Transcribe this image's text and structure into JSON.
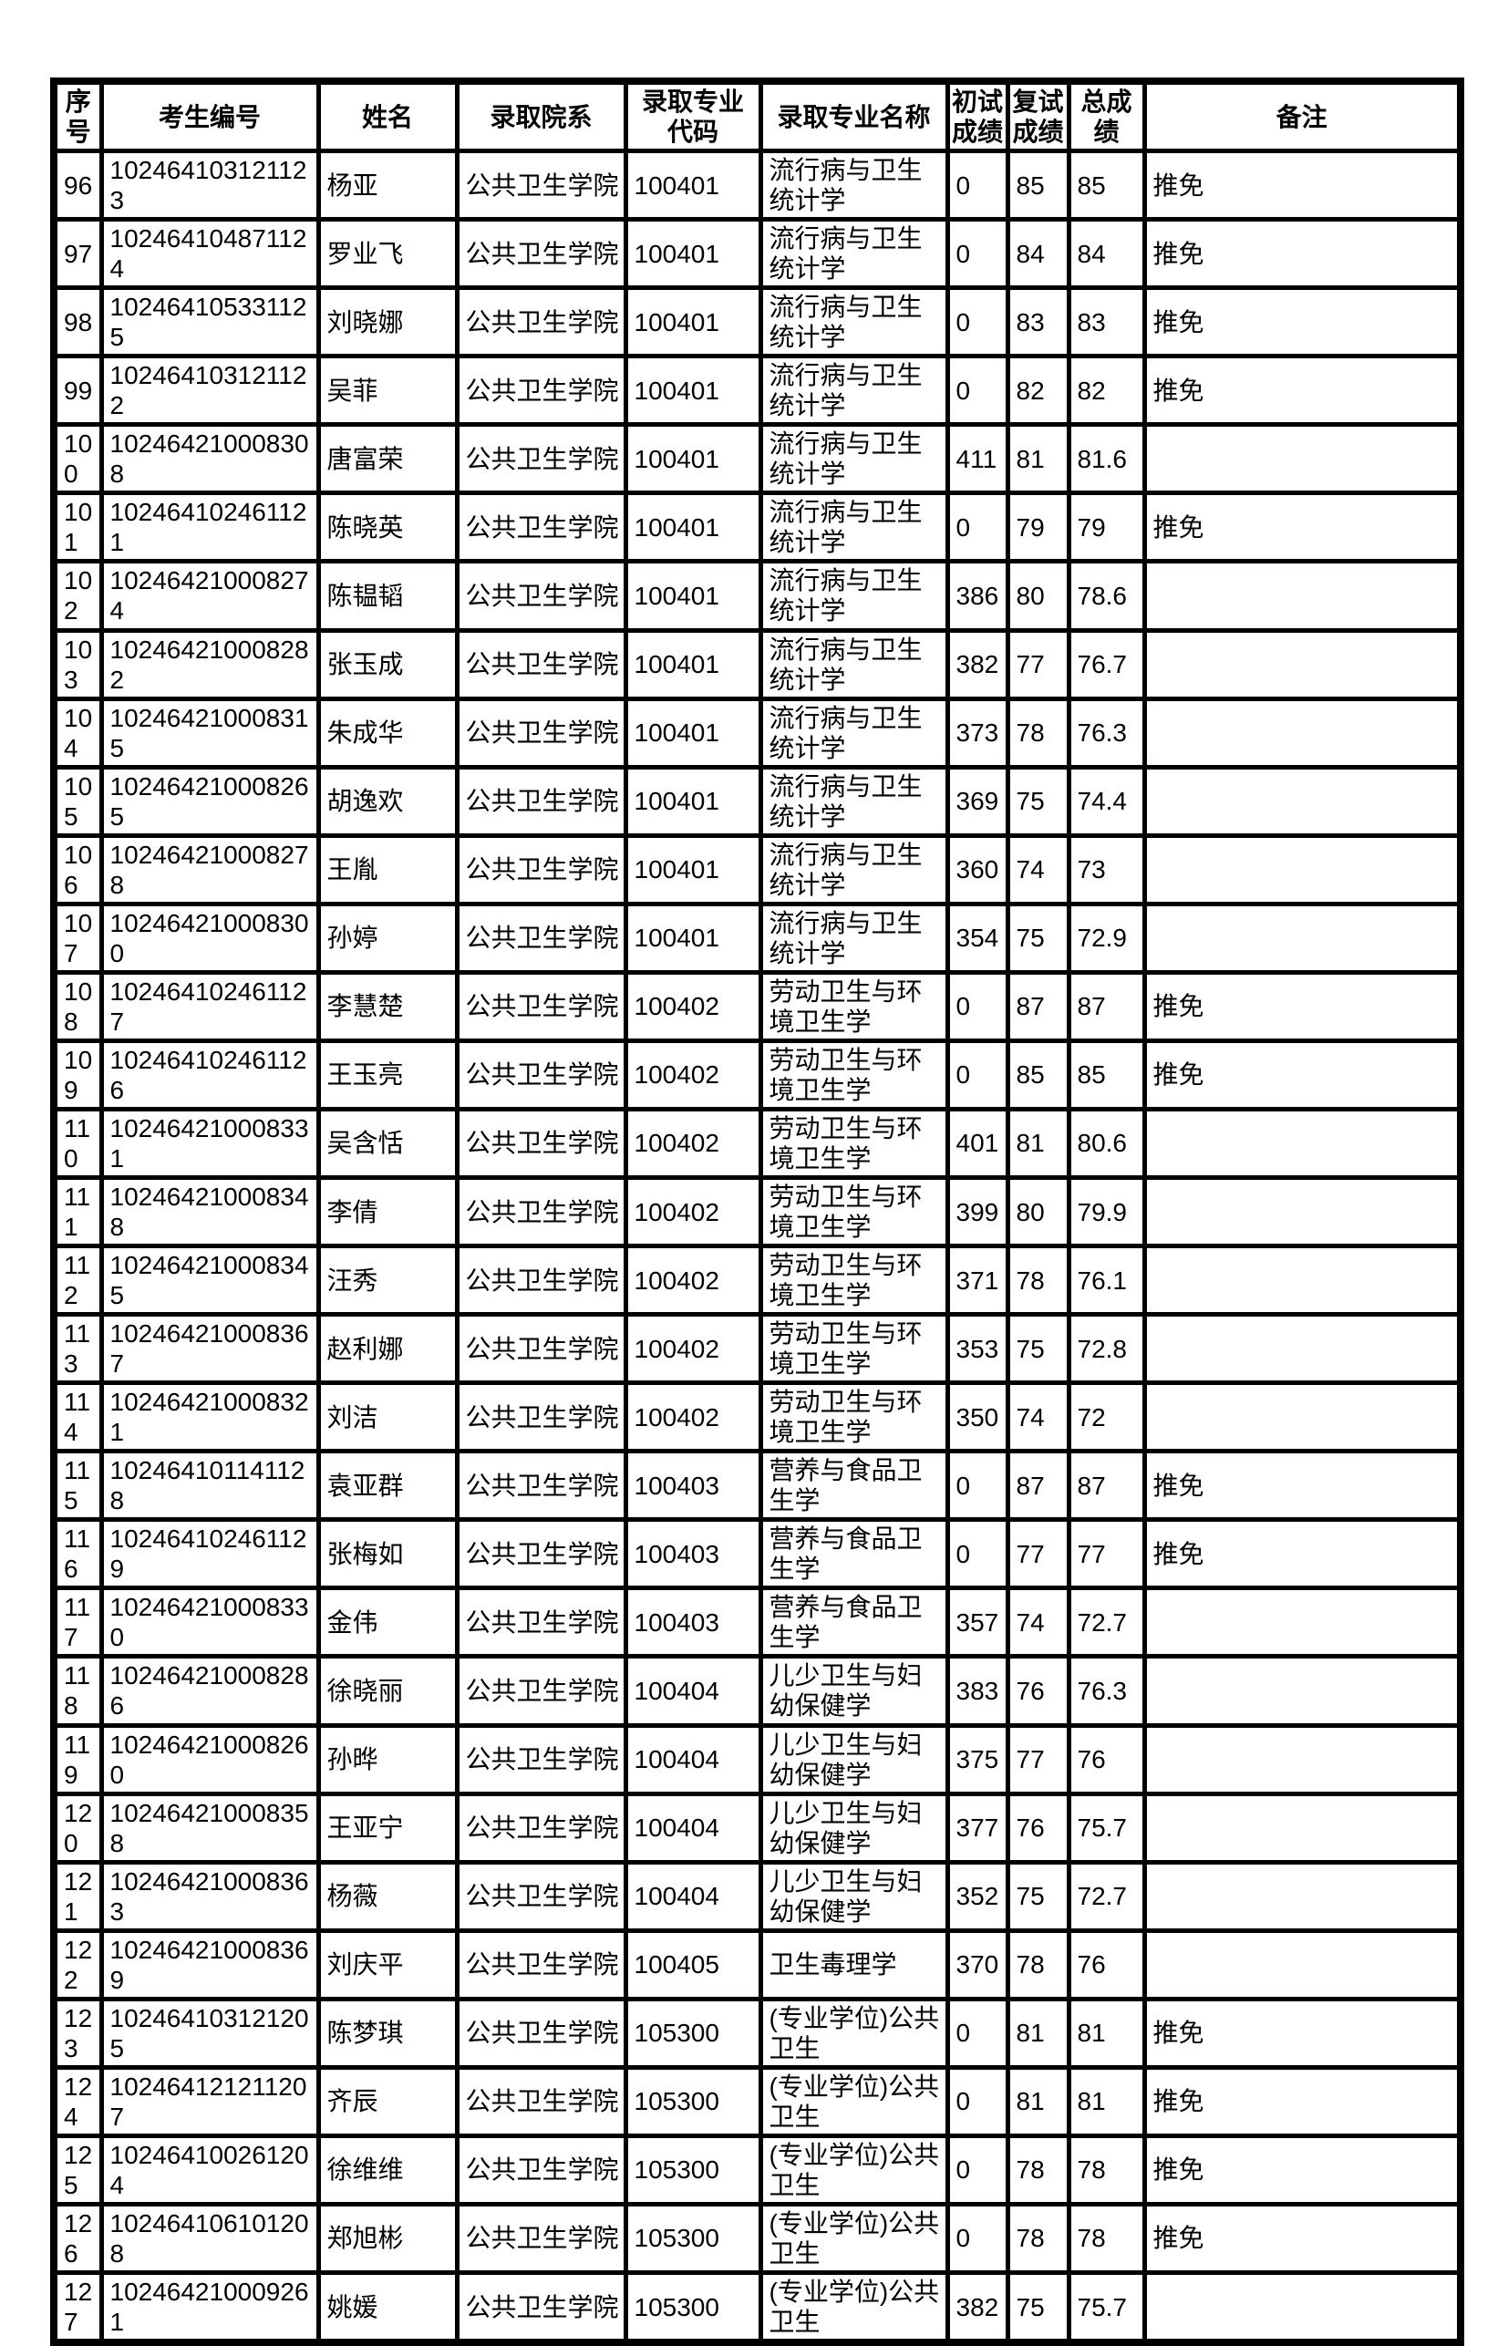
{
  "page": {
    "background": "#ffffff",
    "border_color": "#000000",
    "text_color": "#000000"
  },
  "table": {
    "columns": [
      {
        "key": "index",
        "label": "序号"
      },
      {
        "key": "candidate_id",
        "label": "考生编号"
      },
      {
        "key": "name",
        "label": "姓名"
      },
      {
        "key": "department",
        "label": "录取院系"
      },
      {
        "key": "major_code",
        "label": "录取专业\n代码"
      },
      {
        "key": "major_name",
        "label": "录取专业名称"
      },
      {
        "key": "initial_score",
        "label": "初试\n成绩"
      },
      {
        "key": "retest_score",
        "label": "复试\n成绩"
      },
      {
        "key": "total_score",
        "label": "总成绩"
      },
      {
        "key": "remarks",
        "label": "备注"
      }
    ],
    "rows": [
      [
        "96",
        "102464103121123",
        "杨亚",
        "公共卫生学院",
        "100401",
        "流行病与卫生统计学",
        "0",
        "85",
        "85",
        "推免"
      ],
      [
        "97",
        "102464104871124",
        "罗业飞",
        "公共卫生学院",
        "100401",
        "流行病与卫生统计学",
        "0",
        "84",
        "84",
        "推免"
      ],
      [
        "98",
        "102464105331125",
        "刘晓娜",
        "公共卫生学院",
        "100401",
        "流行病与卫生统计学",
        "0",
        "83",
        "83",
        "推免"
      ],
      [
        "99",
        "102464103121122",
        "吴菲",
        "公共卫生学院",
        "100401",
        "流行病与卫生统计学",
        "0",
        "82",
        "82",
        "推免"
      ],
      [
        "100",
        "102464210008308",
        "唐富荣",
        "公共卫生学院",
        "100401",
        "流行病与卫生统计学",
        "411",
        "81",
        "81.6",
        ""
      ],
      [
        "101",
        "102464102461121",
        "陈晓英",
        "公共卫生学院",
        "100401",
        "流行病与卫生统计学",
        "0",
        "79",
        "79",
        "推免"
      ],
      [
        "102",
        "102464210008274",
        "陈韫韬",
        "公共卫生学院",
        "100401",
        "流行病与卫生统计学",
        "386",
        "80",
        "78.6",
        ""
      ],
      [
        "103",
        "102464210008282",
        "张玉成",
        "公共卫生学院",
        "100401",
        "流行病与卫生统计学",
        "382",
        "77",
        "76.7",
        ""
      ],
      [
        "104",
        "102464210008315",
        "朱成华",
        "公共卫生学院",
        "100401",
        "流行病与卫生统计学",
        "373",
        "78",
        "76.3",
        ""
      ],
      [
        "105",
        "102464210008265",
        "胡逸欢",
        "公共卫生学院",
        "100401",
        "流行病与卫生统计学",
        "369",
        "75",
        "74.4",
        ""
      ],
      [
        "106",
        "102464210008278",
        "王胤",
        "公共卫生学院",
        "100401",
        "流行病与卫生统计学",
        "360",
        "74",
        "73",
        ""
      ],
      [
        "107",
        "102464210008300",
        "孙婷",
        "公共卫生学院",
        "100401",
        "流行病与卫生统计学",
        "354",
        "75",
        "72.9",
        ""
      ],
      [
        "108",
        "102464102461127",
        "李慧楚",
        "公共卫生学院",
        "100402",
        "劳动卫生与环境卫生学",
        "0",
        "87",
        "87",
        "推免"
      ],
      [
        "109",
        "102464102461126",
        "王玉亮",
        "公共卫生学院",
        "100402",
        "劳动卫生与环境卫生学",
        "0",
        "85",
        "85",
        "推免"
      ],
      [
        "110",
        "102464210008331",
        "吴含恬",
        "公共卫生学院",
        "100402",
        "劳动卫生与环境卫生学",
        "401",
        "81",
        "80.6",
        ""
      ],
      [
        "111",
        "102464210008348",
        "李倩",
        "公共卫生学院",
        "100402",
        "劳动卫生与环境卫生学",
        "399",
        "80",
        "79.9",
        ""
      ],
      [
        "112",
        "102464210008345",
        "汪秀",
        "公共卫生学院",
        "100402",
        "劳动卫生与环境卫生学",
        "371",
        "78",
        "76.1",
        ""
      ],
      [
        "113",
        "102464210008367",
        "赵利娜",
        "公共卫生学院",
        "100402",
        "劳动卫生与环境卫生学",
        "353",
        "75",
        "72.8",
        ""
      ],
      [
        "114",
        "102464210008321",
        "刘洁",
        "公共卫生学院",
        "100402",
        "劳动卫生与环境卫生学",
        "350",
        "74",
        "72",
        ""
      ],
      [
        "115",
        "102464101141128",
        "袁亚群",
        "公共卫生学院",
        "100403",
        "营养与食品卫生学",
        "0",
        "87",
        "87",
        "推免"
      ],
      [
        "116",
        "102464102461129",
        "张梅如",
        "公共卫生学院",
        "100403",
        "营养与食品卫生学",
        "0",
        "77",
        "77",
        "推免"
      ],
      [
        "117",
        "102464210008330",
        "金伟",
        "公共卫生学院",
        "100403",
        "营养与食品卫生学",
        "357",
        "74",
        "72.7",
        ""
      ],
      [
        "118",
        "102464210008286",
        "徐晓丽",
        "公共卫生学院",
        "100404",
        "儿少卫生与妇幼保健学",
        "383",
        "76",
        "76.3",
        ""
      ],
      [
        "119",
        "102464210008260",
        "孙晔",
        "公共卫生学院",
        "100404",
        "儿少卫生与妇幼保健学",
        "375",
        "77",
        "76",
        ""
      ],
      [
        "120",
        "102464210008358",
        "王亚宁",
        "公共卫生学院",
        "100404",
        "儿少卫生与妇幼保健学",
        "377",
        "76",
        "75.7",
        ""
      ],
      [
        "121",
        "102464210008363",
        "杨薇",
        "公共卫生学院",
        "100404",
        "儿少卫生与妇幼保健学",
        "352",
        "75",
        "72.7",
        ""
      ],
      [
        "122",
        "102464210008369",
        "刘庆平",
        "公共卫生学院",
        "100405",
        "卫生毒理学",
        "370",
        "78",
        "76",
        ""
      ],
      [
        "123",
        "102464103121205",
        "陈梦琪",
        "公共卫生学院",
        "105300",
        "(专业学位)公共卫生",
        "0",
        "81",
        "81",
        "推免"
      ],
      [
        "124",
        "102464121211207",
        "齐辰",
        "公共卫生学院",
        "105300",
        "(专业学位)公共卫生",
        "0",
        "81",
        "81",
        "推免"
      ],
      [
        "125",
        "102464100261204",
        "徐维维",
        "公共卫生学院",
        "105300",
        "(专业学位)公共卫生",
        "0",
        "78",
        "78",
        "推免"
      ],
      [
        "126",
        "102464106101208",
        "郑旭彬",
        "公共卫生学院",
        "105300",
        "(专业学位)公共卫生",
        "0",
        "78",
        "78",
        "推免"
      ],
      [
        "127",
        "102464210009261",
        "姚媛",
        "公共卫生学院",
        "105300",
        "(专业学位)公共卫生",
        "382",
        "75",
        "75.7",
        ""
      ]
    ]
  }
}
